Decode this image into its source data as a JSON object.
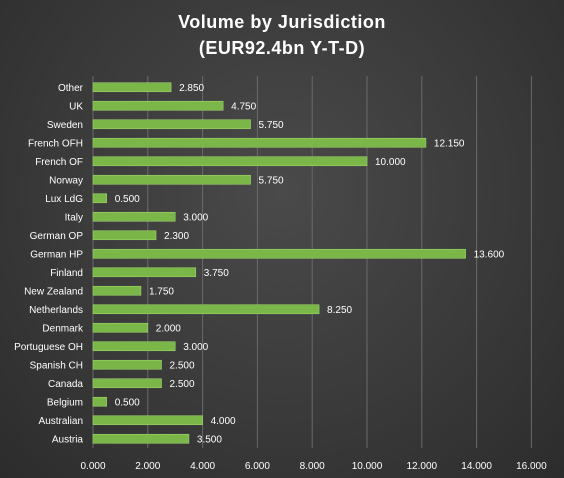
{
  "chart_data": {
    "type": "bar",
    "orientation": "horizontal",
    "title": "Volume  by Jurisdiction",
    "subtitle": "(EUR92.4bn  Y-T-D)",
    "categories": [
      "Other",
      "UK",
      "Sweden",
      "French OFH",
      "French OF",
      "Norway",
      "Lux LdG",
      "Italy",
      "German OP",
      "German HP",
      "Finland",
      "New Zealand",
      "Netherlands",
      "Denmark",
      "Portuguese OH",
      "Spanish CH",
      "Canada",
      "Belgium",
      "Australian",
      "Austria"
    ],
    "values": [
      2.85,
      4.75,
      5.75,
      12.15,
      10.0,
      5.75,
      0.5,
      3.0,
      2.3,
      13.6,
      3.75,
      1.75,
      8.25,
      2.0,
      3.0,
      2.5,
      2.5,
      0.5,
      4.0,
      3.5
    ],
    "value_labels": [
      "2.850",
      "4.750",
      "5.750",
      "12.150",
      "10.000",
      "5.750",
      "0.500",
      "3.000",
      "2.300",
      "13.600",
      "3.750",
      "1.750",
      "8.250",
      "2.000",
      "3.000",
      "2.500",
      "2.500",
      "0.500",
      "4.000",
      "3.500"
    ],
    "x_ticks": [
      "0.000",
      "2.000",
      "4.000",
      "6.000",
      "8.000",
      "10.000",
      "12.000",
      "14.000",
      "16.000"
    ],
    "xlim": [
      0,
      16
    ],
    "grid": true,
    "legend": "none",
    "colors": {
      "bar": "#7ab648",
      "bar_edge": "#9fd36a",
      "grid": "#6a6a6a",
      "text": "#ffffff"
    }
  }
}
